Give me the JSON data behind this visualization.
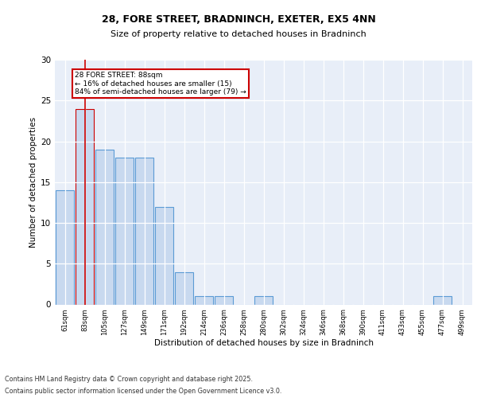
{
  "title1": "28, FORE STREET, BRADNINCH, EXETER, EX5 4NN",
  "title2": "Size of property relative to detached houses in Bradninch",
  "xlabel": "Distribution of detached houses by size in Bradninch",
  "ylabel": "Number of detached properties",
  "categories": [
    "61sqm",
    "83sqm",
    "105sqm",
    "127sqm",
    "149sqm",
    "171sqm",
    "192sqm",
    "214sqm",
    "236sqm",
    "258sqm",
    "280sqm",
    "302sqm",
    "324sqm",
    "346sqm",
    "368sqm",
    "390sqm",
    "411sqm",
    "433sqm",
    "455sqm",
    "477sqm",
    "499sqm"
  ],
  "values": [
    14,
    24,
    19,
    18,
    18,
    12,
    4,
    1,
    1,
    0,
    1,
    0,
    0,
    0,
    0,
    0,
    0,
    0,
    0,
    1,
    0
  ],
  "bar_color": "#c8d9ef",
  "bar_edge_color": "#5b9bd5",
  "highlight_bar_index": 1,
  "highlight_bar_edge_color": "#cc0000",
  "vline_x": 1,
  "annotation_text": "28 FORE STREET: 88sqm\n← 16% of detached houses are smaller (15)\n84% of semi-detached houses are larger (79) →",
  "annotation_box_color": "#ffffff",
  "annotation_box_edge_color": "#cc0000",
  "ylim": [
    0,
    30
  ],
  "yticks": [
    0,
    5,
    10,
    15,
    20,
    25,
    30
  ],
  "background_color": "#e8eef8",
  "grid_color": "#ffffff",
  "footnote1": "Contains HM Land Registry data © Crown copyright and database right 2025.",
  "footnote2": "Contains public sector information licensed under the Open Government Licence v3.0."
}
